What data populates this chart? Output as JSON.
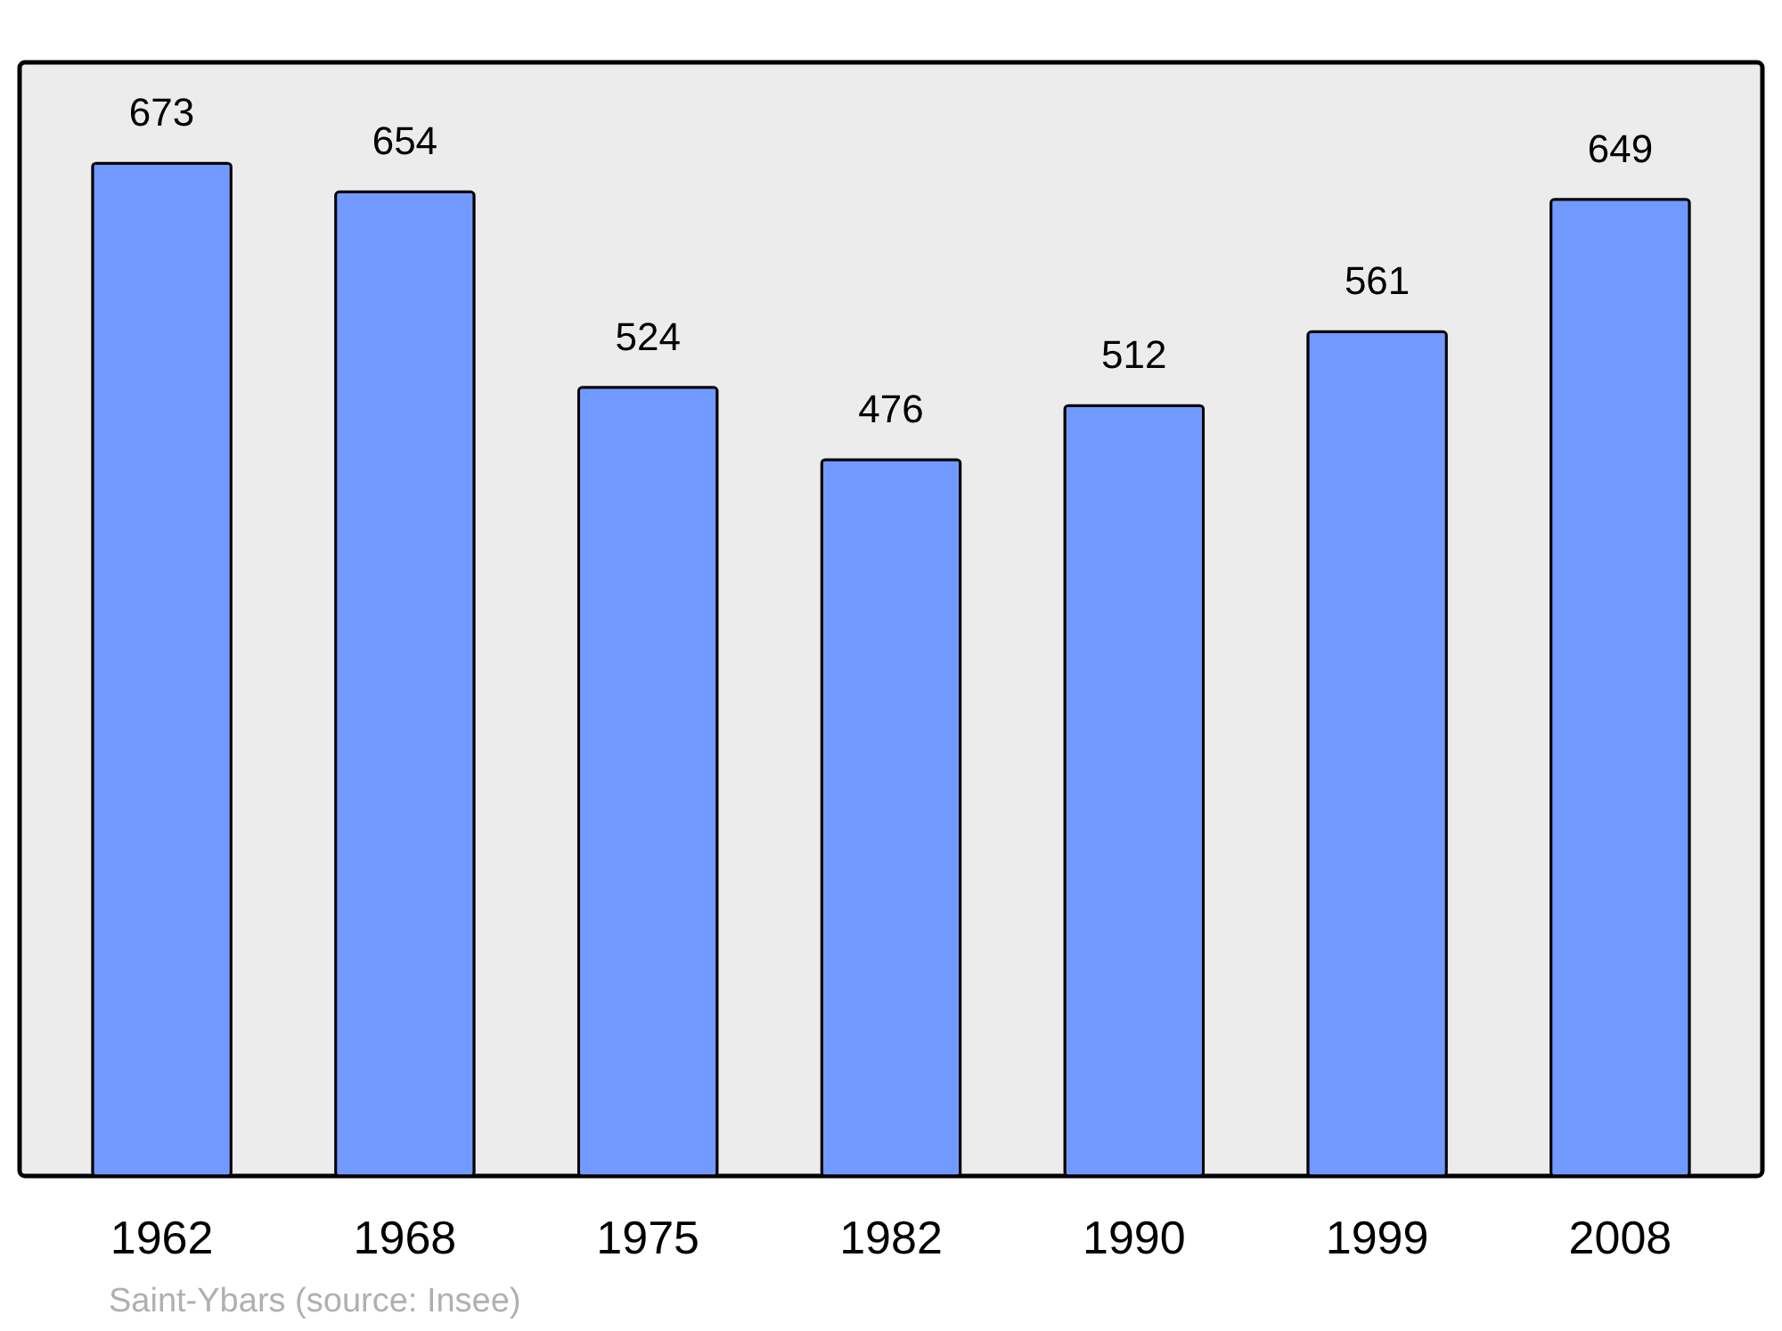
{
  "chart_data": {
    "type": "bar",
    "categories": [
      "1962",
      "1968",
      "1975",
      "1982",
      "1990",
      "1999",
      "2008"
    ],
    "values": [
      673,
      654,
      524,
      476,
      512,
      561,
      649
    ],
    "color": "#7299ff",
    "ylim": [
      0,
      740
    ],
    "data_labels": true,
    "annotations": [
      "Saint-Ybars    (source: Insee)"
    ]
  }
}
